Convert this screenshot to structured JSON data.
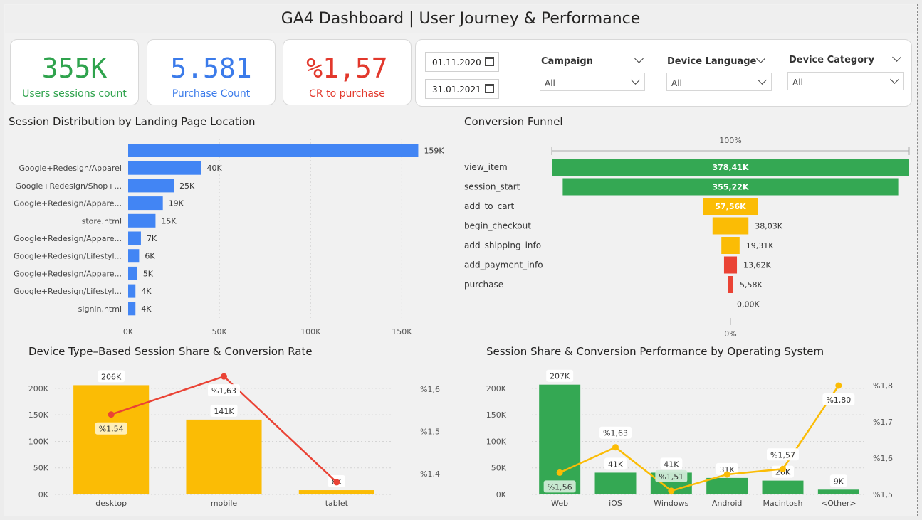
{
  "title": "GA4 Dashboard | User Journey & Performance",
  "kpis": [
    {
      "value": "355K",
      "label": "Users sessions count",
      "color": "#2fa34d"
    },
    {
      "value": "5.581",
      "label": "Purchase Count",
      "color": "#3b7bea"
    },
    {
      "value": "%1,57",
      "label": "CR to purchase",
      "color": "#e2382c"
    }
  ],
  "filters": {
    "start_date": "01.11.2020",
    "end_date": "31.01.2021",
    "campaign": {
      "title": "Campaign",
      "value": "All"
    },
    "device_language": {
      "title": "Device Language",
      "value": "All"
    },
    "device_category": {
      "title": "Device Category",
      "value": "All"
    }
  },
  "colors": {
    "blue": "#4285f4",
    "green": "#34a853",
    "yellow": "#fbbc05",
    "red": "#ea4335"
  },
  "chart_data": [
    {
      "type": "bar",
      "orientation": "horizontal",
      "title": "Session Distribution by Landing Page Location",
      "categories": [
        "",
        "Google+Redesign/Apparel",
        "Google+Redesign/Shop+...",
        "Google+Redesign/Appare...",
        "store.html",
        "Google+Redesign/Appare...",
        "Google+Redesign/Lifestyl...",
        "Google+Redesign/Appare...",
        "Google+Redesign/Lifestyl...",
        "signin.html"
      ],
      "values": [
        159,
        40,
        25,
        19,
        15,
        7,
        6,
        5,
        4,
        4
      ],
      "labels": [
        "159K",
        "40K",
        "25K",
        "19K",
        "15K",
        "7K",
        "6K",
        "5K",
        "4K",
        "4K"
      ],
      "xlim": [
        0,
        160
      ],
      "xticks": [
        "0K",
        "50K",
        "100K",
        "150K"
      ],
      "xtick_values": [
        0,
        50,
        100,
        150
      ]
    },
    {
      "type": "funnel",
      "title": "Conversion Funnel",
      "top_label": "100%",
      "bottom_label": "0%",
      "stages": [
        {
          "name": "view_item",
          "value": 378.41,
          "label": "378,41K",
          "color": "#34a853"
        },
        {
          "name": "session_start",
          "value": 355.22,
          "label": "355,22K",
          "color": "#34a853"
        },
        {
          "name": "add_to_cart",
          "value": 57.56,
          "label": "57,56K",
          "color": "#fbbc05"
        },
        {
          "name": "begin_checkout",
          "value": 38.03,
          "label": "38,03K",
          "color": "#fbbc05"
        },
        {
          "name": "add_shipping_info",
          "value": 19.31,
          "label": "19,31K",
          "color": "#fbbc05"
        },
        {
          "name": "add_payment_info",
          "value": 13.62,
          "label": "13,62K",
          "color": "#ea4335"
        },
        {
          "name": "purchase",
          "value": 5.58,
          "label": "5,58K",
          "color": "#ea4335"
        },
        {
          "name": "",
          "value": 0,
          "label": "0,00K",
          "color": "#ea4335"
        }
      ]
    },
    {
      "type": "bar+line",
      "title": "Device Type–Based Session Share & Conversion Rate",
      "categories": [
        "desktop",
        "mobile",
        "tablet"
      ],
      "bar_values": [
        206,
        141,
        8
      ],
      "bar_labels": [
        "206K",
        "141K",
        "8K"
      ],
      "line_values": [
        1.54,
        1.63,
        1.38
      ],
      "line_labels": [
        "%1,54",
        "%1,63",
        ""
      ],
      "ylim": [
        0,
        220
      ],
      "yticks": [
        "0K",
        "50K",
        "100K",
        "150K",
        "200K"
      ],
      "ytick_values": [
        0,
        50,
        100,
        150,
        200
      ],
      "y2ticks": [
        "%1,4",
        "%1,5",
        "%1,6"
      ],
      "y2tick_values": [
        1.4,
        1.5,
        1.6
      ],
      "bar_color": "#fbbc05",
      "line_color": "#ea4335"
    },
    {
      "type": "bar+line",
      "title": "Session Share & Conversion Performance by Operating System",
      "categories": [
        "Web",
        "iOS",
        "Windows",
        "Android",
        "Macintosh",
        "<Other>"
      ],
      "bar_values": [
        207,
        41,
        41,
        31,
        26,
        9
      ],
      "bar_labels": [
        "207K",
        "41K",
        "41K",
        "31K",
        "26K",
        "9K"
      ],
      "line_values": [
        1.56,
        1.63,
        1.51,
        1.555,
        1.57,
        1.8
      ],
      "line_labels": [
        "%1,56",
        "%1,63",
        "%1,51",
        "",
        "%1,57",
        "%1,80"
      ],
      "ylim": [
        0,
        220
      ],
      "yticks": [
        "0K",
        "50K",
        "100K",
        "150K",
        "200K"
      ],
      "ytick_values": [
        0,
        50,
        100,
        150,
        200
      ],
      "y2ticks": [
        "%1,5",
        "%1,6",
        "%1,7",
        "%1,8"
      ],
      "y2tick_values": [
        1.5,
        1.6,
        1.7,
        1.8
      ],
      "bar_color": "#34a853",
      "line_color": "#fbbc05"
    }
  ]
}
